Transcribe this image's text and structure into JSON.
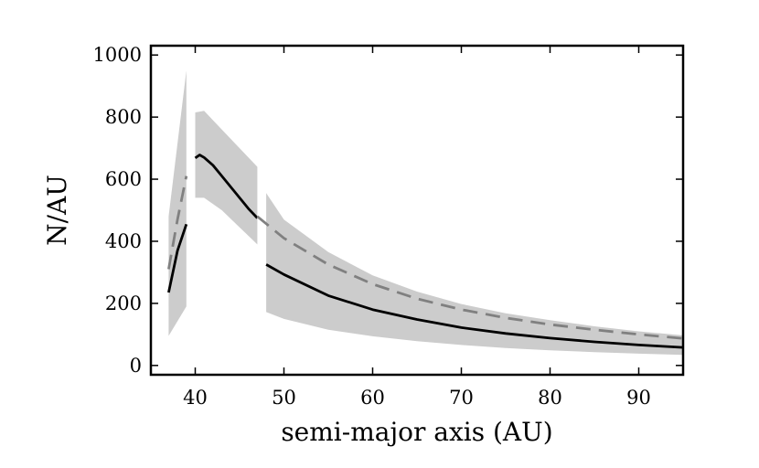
{
  "chart_data": {
    "type": "line",
    "title": "",
    "xlabel": "semi-major axis (AU)",
    "ylabel": "N/AU",
    "xlim": [
      35,
      95
    ],
    "ylim": [
      -30,
      1030
    ],
    "xticks": [
      40,
      50,
      60,
      70,
      80,
      90
    ],
    "yticks": [
      0,
      200,
      400,
      600,
      800,
      1000
    ],
    "grid": false,
    "legend": "none",
    "colors": {
      "band": "#cccccc",
      "solid": "#000000",
      "dashed": "#808080"
    },
    "bands": [
      {
        "upper": [
          [
            37,
            480
          ],
          [
            39,
            950
          ]
        ],
        "lower": [
          [
            37,
            95
          ],
          [
            39,
            190
          ]
        ]
      },
      {
        "upper": [
          [
            40,
            815
          ],
          [
            41,
            820
          ],
          [
            43,
            760
          ],
          [
            45,
            700
          ],
          [
            47,
            640
          ]
        ],
        "lower": [
          [
            40,
            540
          ],
          [
            41,
            540
          ],
          [
            43,
            500
          ],
          [
            45,
            445
          ],
          [
            47,
            390
          ]
        ]
      },
      {
        "upper": [
          [
            48,
            555
          ],
          [
            50,
            470
          ],
          [
            55,
            365
          ],
          [
            60,
            290
          ],
          [
            65,
            238
          ],
          [
            70,
            198
          ],
          [
            75,
            168
          ],
          [
            80,
            146
          ],
          [
            85,
            126
          ],
          [
            90,
            110
          ],
          [
            95,
            97
          ]
        ],
        "lower": [
          [
            48,
            172
          ],
          [
            50,
            150
          ],
          [
            55,
            115
          ],
          [
            60,
            94
          ],
          [
            65,
            78
          ],
          [
            70,
            66
          ],
          [
            75,
            56
          ],
          [
            80,
            49
          ],
          [
            85,
            43
          ],
          [
            90,
            38
          ],
          [
            95,
            34
          ]
        ]
      }
    ],
    "series": [
      {
        "style": "solid",
        "segments": [
          [
            [
              37,
              235
            ],
            [
              38,
              370
            ],
            [
              39,
              455
            ]
          ],
          [
            [
              40,
              668
            ],
            [
              40.5,
              678
            ],
            [
              41,
              670
            ],
            [
              42,
              645
            ],
            [
              43,
              610
            ],
            [
              44,
              575
            ],
            [
              45,
              540
            ],
            [
              46,
              505
            ],
            [
              47,
              475
            ]
          ],
          [
            [
              48,
              325
            ],
            [
              50,
              293
            ],
            [
              55,
              225
            ],
            [
              60,
              180
            ],
            [
              65,
              148
            ],
            [
              70,
              122
            ],
            [
              75,
              103
            ],
            [
              80,
              88
            ],
            [
              85,
              76
            ],
            [
              90,
              66
            ],
            [
              95,
              58
            ]
          ]
        ]
      },
      {
        "style": "dashed",
        "segments": [
          [
            [
              37,
              310
            ],
            [
              38,
              470
            ],
            [
              39,
              610
            ]
          ],
          [
            [
              47,
              480
            ],
            [
              50,
              410
            ],
            [
              55,
              325
            ],
            [
              60,
              262
            ],
            [
              65,
              215
            ],
            [
              70,
              180
            ],
            [
              75,
              153
            ],
            [
              80,
              132
            ],
            [
              85,
              115
            ],
            [
              90,
              100
            ],
            [
              95,
              87
            ]
          ]
        ]
      }
    ]
  }
}
